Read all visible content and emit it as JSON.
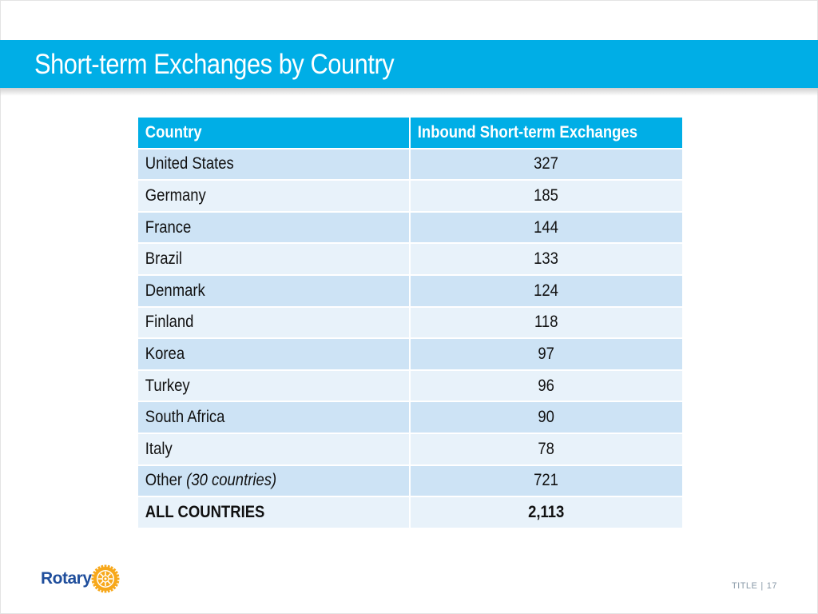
{
  "slide": {
    "title": "Short-term Exchanges by Country"
  },
  "table": {
    "headers": [
      "Country",
      "Inbound Short-term Exchanges"
    ],
    "rows": [
      {
        "country": "United States",
        "value": "327"
      },
      {
        "country": "Germany",
        "value": "185"
      },
      {
        "country": "France",
        "value": "144"
      },
      {
        "country": "Brazil",
        "value": "133"
      },
      {
        "country": "Denmark",
        "value": "124"
      },
      {
        "country": "Finland",
        "value": "118"
      },
      {
        "country": "Korea",
        "value": "97"
      },
      {
        "country": "Turkey",
        "value": "96"
      },
      {
        "country": "South Africa",
        "value": "90"
      },
      {
        "country": "Italy",
        "value": "78"
      },
      {
        "country": "Other",
        "note": "(30 countries)",
        "value": "721"
      },
      {
        "country": "ALL COUNTRIES",
        "value": "2,113"
      }
    ]
  },
  "footer": {
    "logo_text": "Rotary",
    "logo_icon": "rotary-wheel-icon",
    "label": "TITLE",
    "separator": "|",
    "page_number": "17"
  },
  "colors": {
    "accent": "#00aee6",
    "row_odd": "#cde3f5",
    "row_even": "#e8f2fa",
    "logo_blue": "#1f4e9c",
    "logo_gold": "#f7a81b"
  }
}
